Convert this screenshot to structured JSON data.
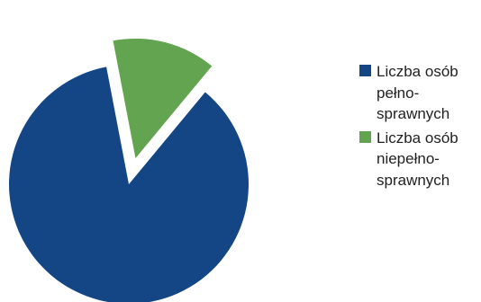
{
  "chart_data": {
    "type": "pie",
    "exploded": true,
    "legend_position": "right",
    "slices": [
      {
        "label": "Liczba osób pełno-sprawnych",
        "value": 86,
        "color": "#144686"
      },
      {
        "label": "Liczba osób niepełno-sprawnych",
        "value": 14,
        "color": "#62A44F"
      }
    ]
  },
  "legend": {
    "items": [
      {
        "lines": [
          "Liczba osób",
          "pełno-",
          "sprawnych"
        ],
        "color": "#144686"
      },
      {
        "lines": [
          "Liczba osób",
          "niepełno-",
          "sprawnych"
        ],
        "color": "#62A44F"
      }
    ]
  }
}
